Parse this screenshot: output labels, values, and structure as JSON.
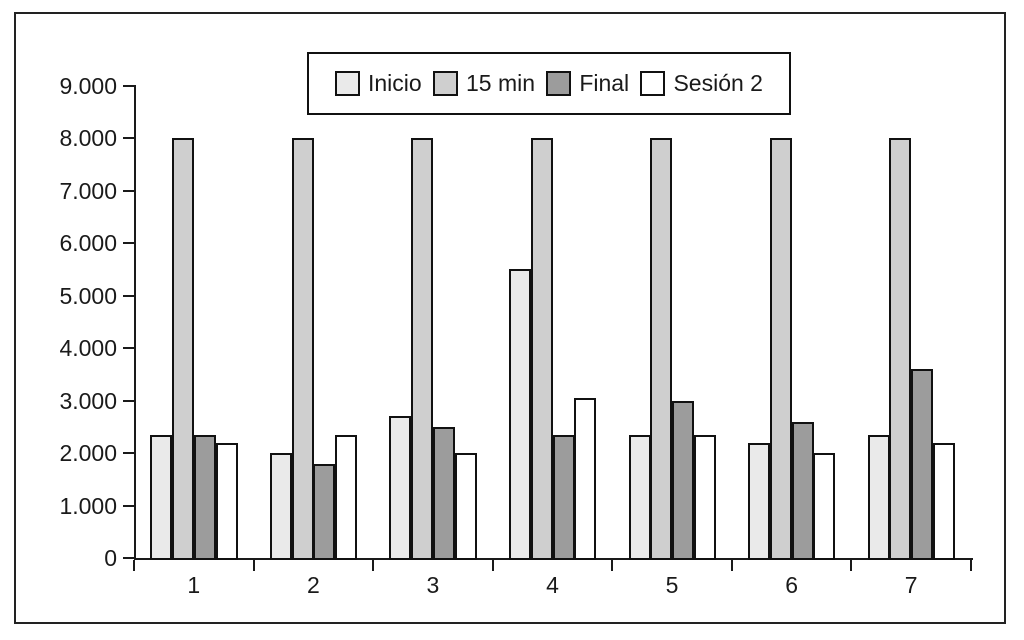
{
  "chart_data": {
    "type": "bar",
    "title": "",
    "xlabel": "",
    "ylabel": "",
    "categories": [
      "1",
      "2",
      "3",
      "4",
      "5",
      "6",
      "7"
    ],
    "series": [
      {
        "name": "Inicio",
        "color": "#eaeaea",
        "values": [
          2350,
          2000,
          2700,
          5500,
          2350,
          2200,
          2350
        ]
      },
      {
        "name": "15 min",
        "color": "#cfcfcf",
        "values": [
          8000,
          8000,
          8000,
          8000,
          8000,
          8000,
          8000
        ]
      },
      {
        "name": "Final",
        "color": "#9c9c9c",
        "values": [
          2350,
          1800,
          2500,
          2350,
          3000,
          2600,
          3600
        ]
      },
      {
        "name": "Sesión 2",
        "color": "#ffffff",
        "values": [
          2200,
          2350,
          2000,
          3050,
          2350,
          2000,
          2200
        ]
      }
    ],
    "ylim": [
      0,
      9000
    ],
    "ytick_step": 1000,
    "ytick_labels": [
      "0",
      "1.000",
      "2.000",
      "3.000",
      "4.000",
      "5.000",
      "6.000",
      "7.000",
      "8.000",
      "9.000"
    ],
    "grid": false,
    "legend_position": "top-center",
    "bar_outline_color": "#111111",
    "axis_color": "#1a1a1a"
  }
}
